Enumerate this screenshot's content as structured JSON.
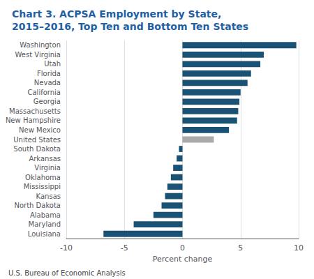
{
  "chart_data": {
    "type": "bar",
    "orientation": "horizontal",
    "title": "Chart 3. ACPSA Employment by State,\n2015–2016, Top Ten and Bottom Ten States",
    "xlabel": "Percent change",
    "annotations": [
      "U.S. Bureau of Economic Analysis"
    ],
    "categories": [
      "Washington",
      "West Virginia",
      "Utah",
      "Florida",
      "Nevada",
      "California",
      "Georgia",
      "Massachusetts",
      "New Hampshire",
      "New Mexico",
      "United States",
      "South Dakota",
      "Arkansas",
      "Virginia",
      "Oklahoma",
      "Mississippi",
      "Kansas",
      "North Dakota",
      "Alabama",
      "Maryland",
      "Louisiana"
    ],
    "values": [
      9.8,
      7.0,
      6.7,
      5.9,
      5.6,
      5.0,
      4.9,
      4.8,
      4.7,
      4.0,
      2.7,
      -0.3,
      -0.5,
      -0.8,
      -1.0,
      -1.3,
      -1.5,
      -1.8,
      -2.5,
      -4.2,
      -6.8
    ],
    "colors": [
      "#1a5276",
      "#1a5276",
      "#1a5276",
      "#1a5276",
      "#1a5276",
      "#1a5276",
      "#1a5276",
      "#1a5276",
      "#1a5276",
      "#1a5276",
      "#aaaaaa",
      "#1a5276",
      "#1a5276",
      "#1a5276",
      "#1a5276",
      "#1a5276",
      "#1a5276",
      "#1a5276",
      "#1a5276",
      "#1a5276",
      "#1a5276"
    ],
    "xlim": [
      -10,
      10
    ],
    "xticks": [
      -10,
      -5,
      0,
      5,
      10
    ],
    "grid": true
  }
}
